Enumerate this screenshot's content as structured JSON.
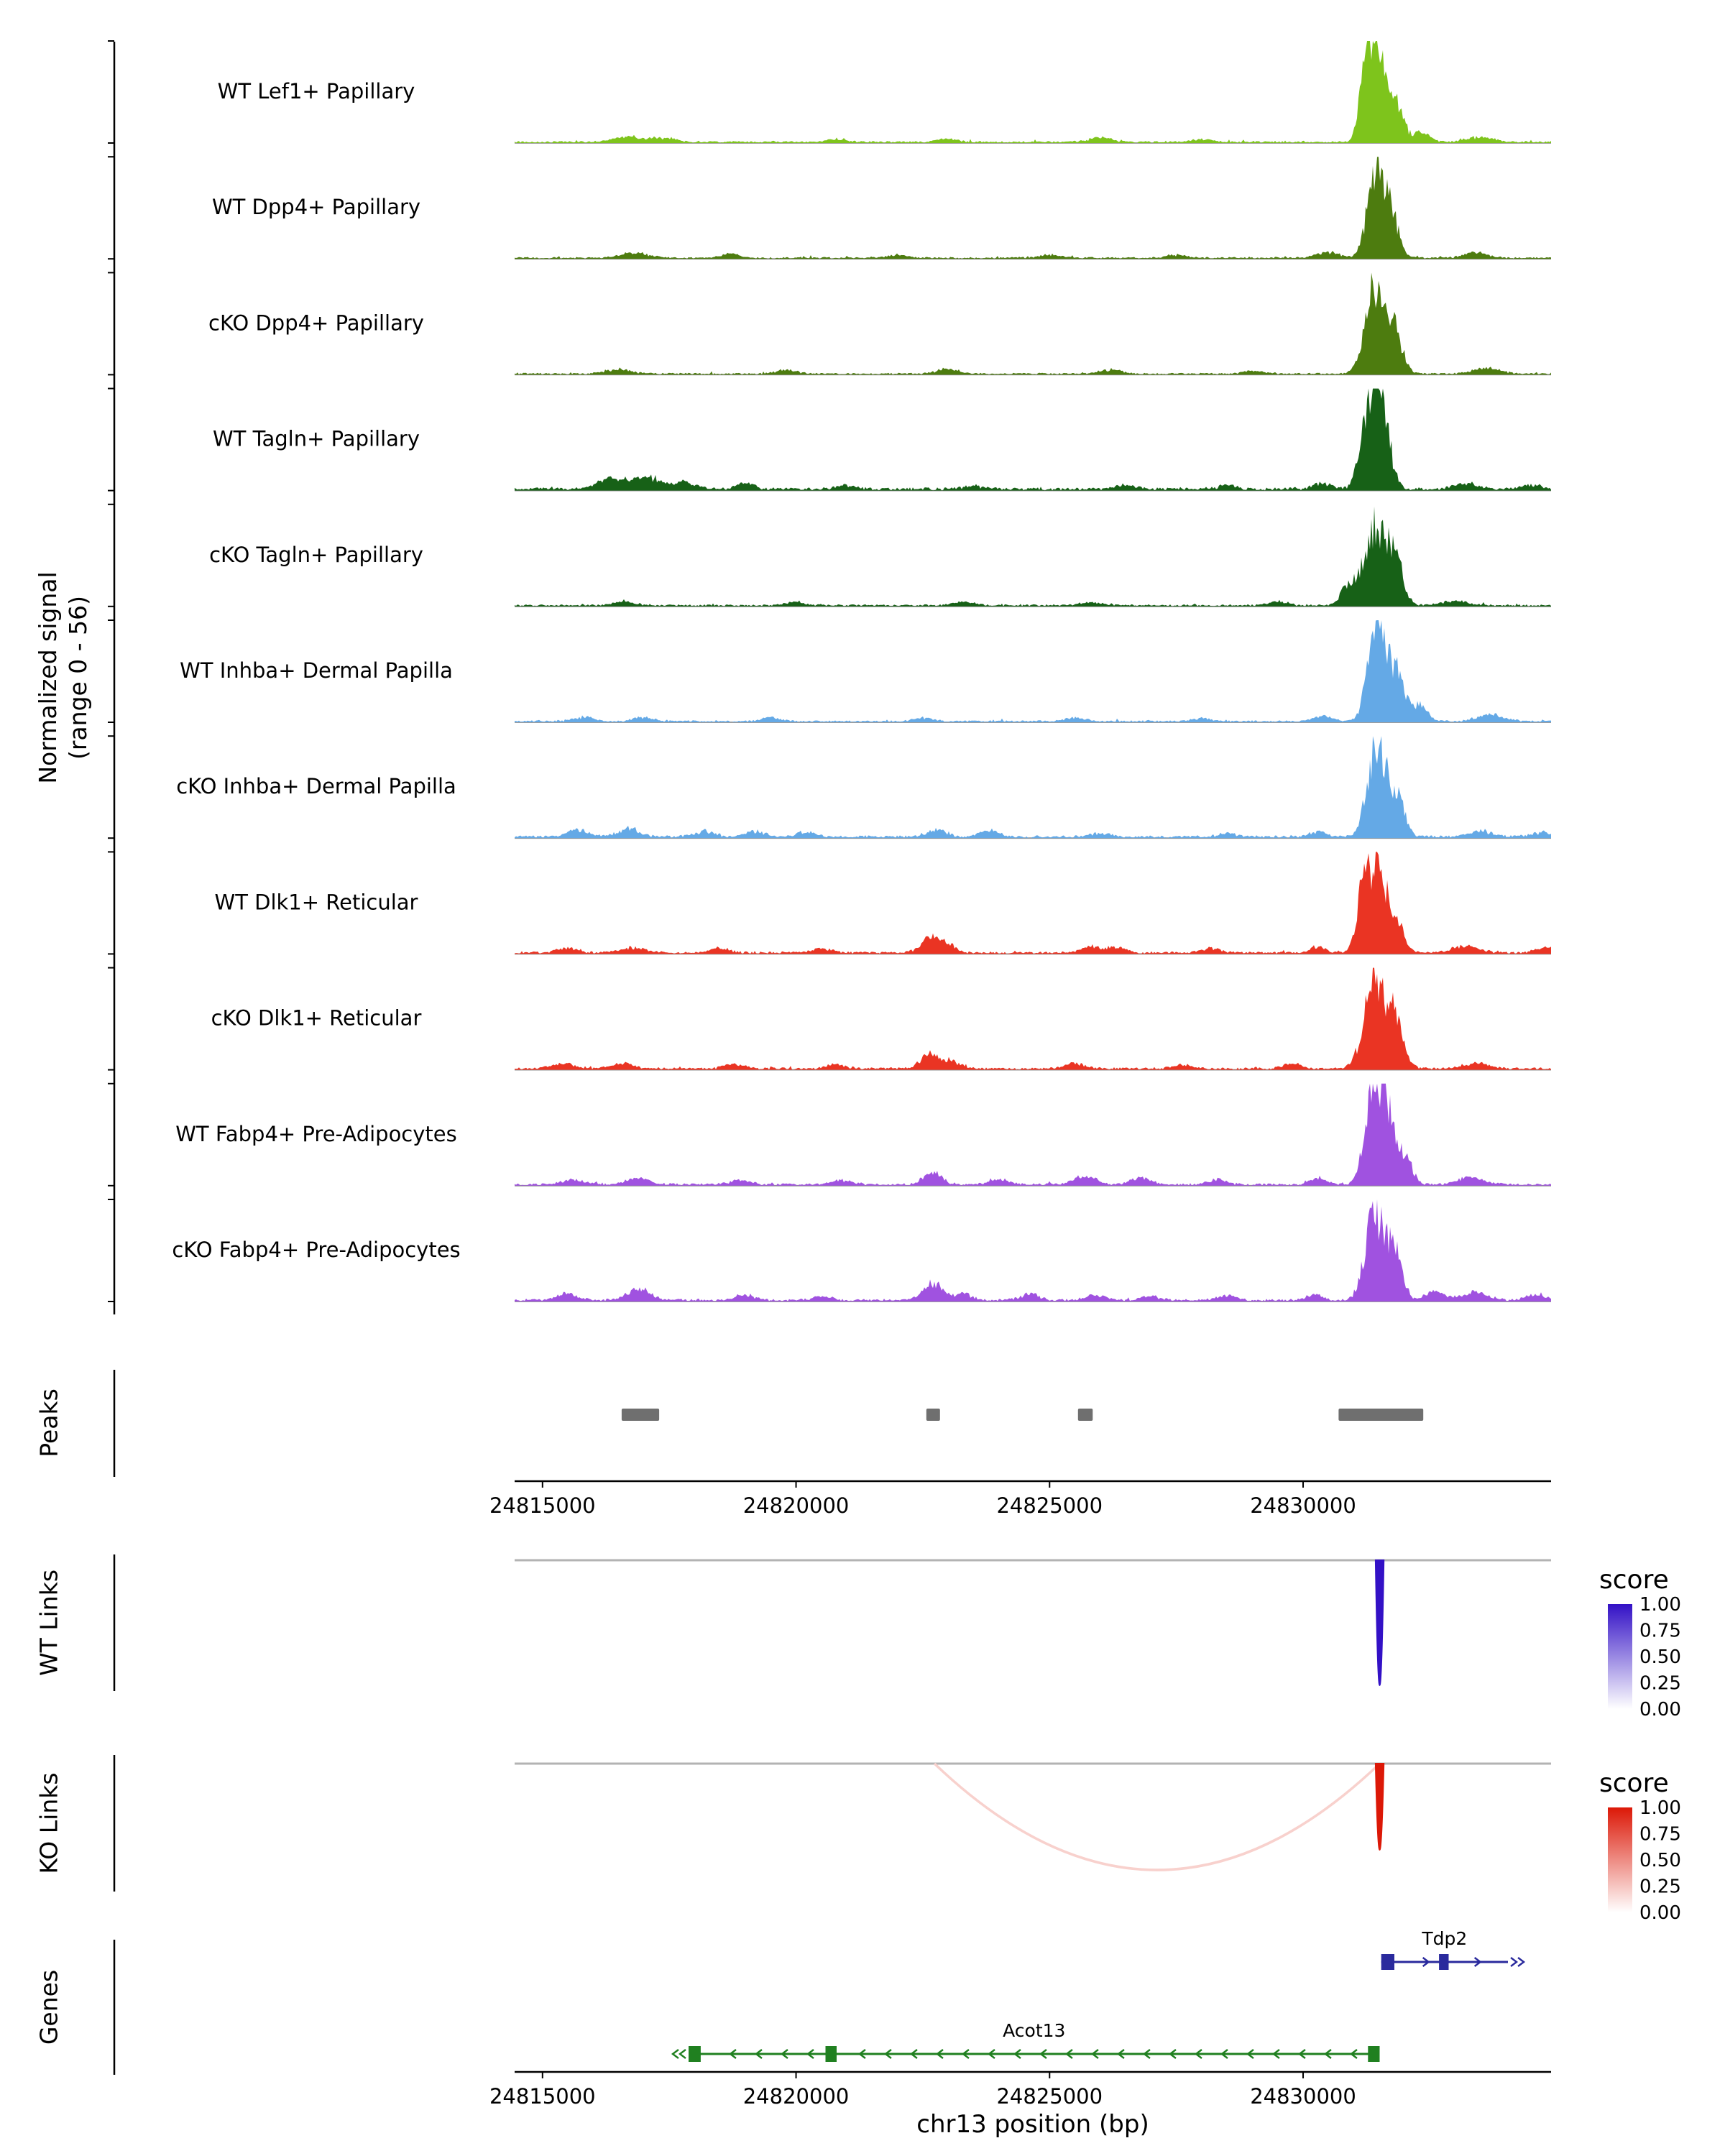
{
  "labels": {
    "ylabel1": "Normalized signal",
    "ylabel2": "(range 0 - 56)",
    "peaks": "Peaks",
    "wt_links": "WT Links",
    "ko_links": "KO Links",
    "genes": "Genes",
    "xlabel": "chr13 position (bp)"
  },
  "chart_data": {
    "type": "area",
    "region": {
      "chrom": "chr13",
      "start": 24814450,
      "end": 24834890
    },
    "x_ticks": [
      24815000,
      24820000,
      24825000,
      24830000
    ],
    "signal_range": "0 - 56",
    "tracks": [
      {
        "label": "WT Lef1+ Papillary",
        "color": "#7EC41C",
        "noise": 0.012,
        "peaks": [
          [
            24831450,
            0.92,
            180
          ],
          [
            24831250,
            0.5,
            120
          ],
          [
            24831850,
            0.3,
            150
          ],
          [
            24832350,
            0.1,
            150
          ],
          [
            24816700,
            0.05,
            300
          ],
          [
            24817400,
            0.04,
            200
          ],
          [
            24820800,
            0.025,
            200
          ],
          [
            24823000,
            0.03,
            200
          ],
          [
            24826000,
            0.04,
            250
          ],
          [
            24828000,
            0.025,
            200
          ],
          [
            24833500,
            0.05,
            250
          ]
        ]
      },
      {
        "label": "WT Dpp4+ Papillary",
        "color": "#4D7C0F",
        "noise": 0.012,
        "peaks": [
          [
            24831450,
            0.88,
            170
          ],
          [
            24831750,
            0.35,
            140
          ],
          [
            24816800,
            0.05,
            250
          ],
          [
            24818700,
            0.04,
            180
          ],
          [
            24822000,
            0.03,
            180
          ],
          [
            24825000,
            0.03,
            200
          ],
          [
            24827500,
            0.03,
            200
          ],
          [
            24830500,
            0.06,
            200
          ],
          [
            24833400,
            0.05,
            220
          ]
        ]
      },
      {
        "label": "cKO Dpp4+ Papillary",
        "color": "#4D7C0F",
        "noise": 0.012,
        "peaks": [
          [
            24831400,
            0.8,
            180
          ],
          [
            24831800,
            0.4,
            160
          ],
          [
            24816500,
            0.04,
            250
          ],
          [
            24819800,
            0.035,
            200
          ],
          [
            24823000,
            0.05,
            200
          ],
          [
            24826200,
            0.04,
            220
          ],
          [
            24829000,
            0.03,
            180
          ],
          [
            24833600,
            0.06,
            250
          ]
        ]
      },
      {
        "label": "WT Tagln+ Papillary",
        "color": "#176117",
        "noise": 0.02,
        "peaks": [
          [
            24831500,
            1.0,
            170
          ],
          [
            24831200,
            0.5,
            120
          ],
          [
            24816400,
            0.1,
            300
          ],
          [
            24817100,
            0.12,
            250
          ],
          [
            24817800,
            0.06,
            200
          ],
          [
            24819000,
            0.05,
            180
          ],
          [
            24821000,
            0.035,
            180
          ],
          [
            24823500,
            0.03,
            200
          ],
          [
            24826500,
            0.035,
            200
          ],
          [
            24828500,
            0.04,
            180
          ],
          [
            24830400,
            0.06,
            180
          ],
          [
            24833200,
            0.05,
            250
          ],
          [
            24834500,
            0.04,
            200
          ]
        ]
      },
      {
        "label": "cKO Tagln+ Papillary",
        "color": "#176117",
        "noise": 0.013,
        "peaks": [
          [
            24831400,
            0.74,
            200
          ],
          [
            24831800,
            0.45,
            160
          ],
          [
            24830900,
            0.18,
            150
          ],
          [
            24816600,
            0.035,
            200
          ],
          [
            24820000,
            0.03,
            180
          ],
          [
            24823300,
            0.035,
            200
          ],
          [
            24825800,
            0.03,
            200
          ],
          [
            24829500,
            0.04,
            180
          ],
          [
            24833000,
            0.04,
            250
          ]
        ]
      },
      {
        "label": "WT Inhba+ Dermal Papilla",
        "color": "#64A9E6",
        "noise": 0.012,
        "peaks": [
          [
            24831450,
            0.92,
            170
          ],
          [
            24831850,
            0.45,
            160
          ],
          [
            24832300,
            0.15,
            150
          ],
          [
            24815800,
            0.04,
            200
          ],
          [
            24817000,
            0.04,
            200
          ],
          [
            24819500,
            0.035,
            180
          ],
          [
            24822500,
            0.03,
            200
          ],
          [
            24825500,
            0.035,
            200
          ],
          [
            24828000,
            0.03,
            180
          ],
          [
            24830400,
            0.05,
            180
          ],
          [
            24833700,
            0.06,
            250
          ]
        ]
      },
      {
        "label": "cKO Inhba+ Dermal Papilla",
        "color": "#64A9E6",
        "noise": 0.017,
        "peaks": [
          [
            24831450,
            0.86,
            180
          ],
          [
            24831850,
            0.38,
            150
          ],
          [
            24815700,
            0.07,
            200
          ],
          [
            24816700,
            0.08,
            220
          ],
          [
            24818200,
            0.05,
            200
          ],
          [
            24819200,
            0.05,
            180
          ],
          [
            24820200,
            0.045,
            180
          ],
          [
            24822800,
            0.07,
            180
          ],
          [
            24823800,
            0.06,
            180
          ],
          [
            24826000,
            0.035,
            200
          ],
          [
            24828500,
            0.03,
            180
          ],
          [
            24830300,
            0.05,
            150
          ],
          [
            24833500,
            0.05,
            250
          ],
          [
            24834700,
            0.04,
            200
          ]
        ]
      },
      {
        "label": "WT Dlk1+ Reticular",
        "color": "#EA3423",
        "noise": 0.015,
        "peaks": [
          [
            24831450,
            0.88,
            170
          ],
          [
            24831150,
            0.45,
            120
          ],
          [
            24831850,
            0.3,
            140
          ],
          [
            24815500,
            0.05,
            200
          ],
          [
            24816800,
            0.05,
            250
          ],
          [
            24818500,
            0.04,
            200
          ],
          [
            24820500,
            0.04,
            200
          ],
          [
            24822650,
            0.14,
            180
          ],
          [
            24823000,
            0.08,
            150
          ],
          [
            24825800,
            0.06,
            200
          ],
          [
            24826300,
            0.05,
            180
          ],
          [
            24828200,
            0.04,
            180
          ],
          [
            24830300,
            0.06,
            150
          ],
          [
            24833200,
            0.06,
            250
          ],
          [
            24834800,
            0.05,
            200
          ]
        ]
      },
      {
        "label": "cKO Dlk1+ Reticular",
        "color": "#EA3423",
        "noise": 0.015,
        "peaks": [
          [
            24831400,
            0.82,
            200
          ],
          [
            24831800,
            0.5,
            170
          ],
          [
            24815400,
            0.05,
            200
          ],
          [
            24816600,
            0.05,
            220
          ],
          [
            24818800,
            0.04,
            200
          ],
          [
            24820800,
            0.04,
            180
          ],
          [
            24822650,
            0.15,
            180
          ],
          [
            24823100,
            0.07,
            150
          ],
          [
            24825500,
            0.05,
            200
          ],
          [
            24827600,
            0.04,
            180
          ],
          [
            24829800,
            0.045,
            180
          ],
          [
            24833400,
            0.05,
            250
          ]
        ]
      },
      {
        "label": "WT Fabp4+ Pre-Adipocytes",
        "color": "#A052E0",
        "noise": 0.015,
        "peaks": [
          [
            24831350,
            0.88,
            150
          ],
          [
            24831650,
            0.75,
            130
          ],
          [
            24832000,
            0.3,
            140
          ],
          [
            24815600,
            0.05,
            200
          ],
          [
            24816900,
            0.06,
            220
          ],
          [
            24818900,
            0.04,
            200
          ],
          [
            24820900,
            0.04,
            180
          ],
          [
            24822700,
            0.12,
            180
          ],
          [
            24824000,
            0.05,
            180
          ],
          [
            24825700,
            0.08,
            200
          ],
          [
            24826800,
            0.07,
            180
          ],
          [
            24828300,
            0.05,
            180
          ],
          [
            24830300,
            0.06,
            150
          ],
          [
            24833300,
            0.07,
            250
          ]
        ]
      },
      {
        "label": "cKO Fabp4+ Pre-Adipocytes",
        "color": "#A052E0",
        "noise": 0.016,
        "peaks": [
          [
            24831400,
            0.85,
            180
          ],
          [
            24831800,
            0.45,
            150
          ],
          [
            24815500,
            0.06,
            200
          ],
          [
            24816900,
            0.12,
            220
          ],
          [
            24819000,
            0.05,
            200
          ],
          [
            24820500,
            0.04,
            180
          ],
          [
            24822700,
            0.17,
            190
          ],
          [
            24823300,
            0.07,
            150
          ],
          [
            24824600,
            0.06,
            180
          ],
          [
            24825900,
            0.05,
            180
          ],
          [
            24827000,
            0.04,
            180
          ],
          [
            24828500,
            0.045,
            180
          ],
          [
            24830200,
            0.06,
            150
          ],
          [
            24832600,
            0.08,
            180
          ],
          [
            24833400,
            0.08,
            250
          ],
          [
            24834600,
            0.05,
            200
          ]
        ]
      }
    ],
    "peaks_track": {
      "color": "#6F6F6F",
      "intervals": [
        [
          24816560,
          24817300
        ],
        [
          24822570,
          24822840
        ],
        [
          24825560,
          24825850
        ],
        [
          24830700,
          24832370
        ]
      ]
    },
    "links": [
      {
        "group": "WT",
        "high_color": "#3311C6",
        "legend_title": "score",
        "legend_ticks": [
          "1.00",
          "0.75",
          "0.50",
          "0.25",
          "0.00"
        ],
        "links": [
          {
            "start": 24831430,
            "end": 24831590,
            "score": 1.0,
            "depth": 174
          }
        ]
      },
      {
        "group": "KO",
        "high_color": "#DC1807",
        "legend_title": "score",
        "legend_ticks": [
          "1.00",
          "0.75",
          "0.50",
          "0.25",
          "0.00"
        ],
        "links": [
          {
            "start": 24822730,
            "end": 24831510,
            "score": 0.2,
            "depth": 148
          },
          {
            "start": 24831430,
            "end": 24831590,
            "score": 1.0,
            "depth": 120
          }
        ]
      }
    ],
    "genes": [
      {
        "name": "Acot13",
        "strand": "-",
        "start": 24817880,
        "end": 24831510,
        "color": "#208020",
        "exons": [
          [
            24817880,
            24818120
          ],
          [
            24820580,
            24820800
          ],
          [
            24831280,
            24831510
          ]
        ]
      },
      {
        "name": "Tdp2",
        "strand": "+",
        "start": 24831540,
        "end": 24834040,
        "color": "#2A2A9D",
        "exons": [
          [
            24831540,
            24831800
          ],
          [
            24832680,
            24832870
          ]
        ]
      }
    ]
  }
}
